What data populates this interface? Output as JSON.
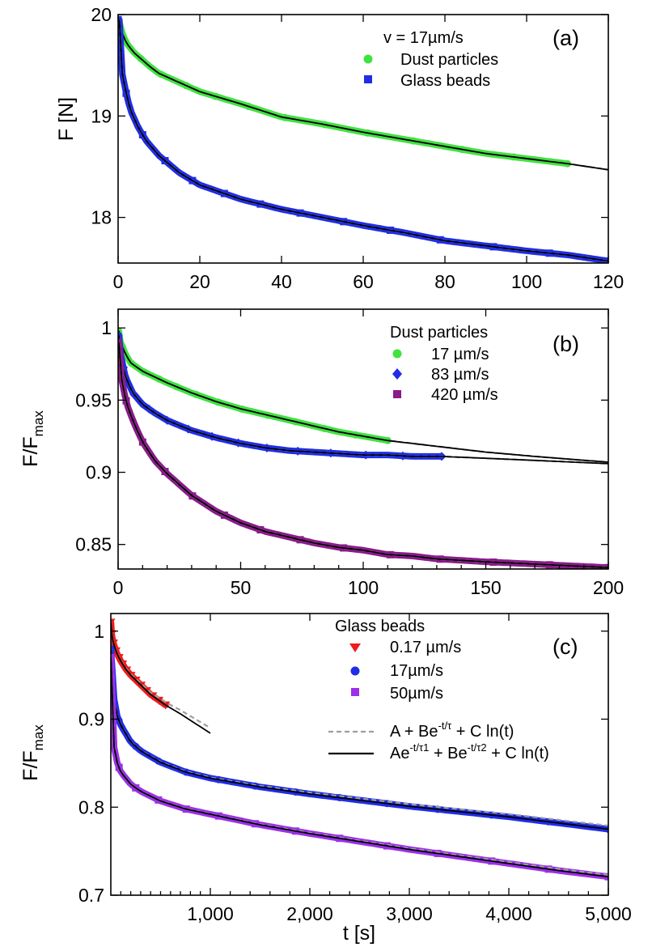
{
  "figure": {
    "x_axis_title": "t [s]"
  },
  "chart_data": [
    {
      "id": "a",
      "type": "line",
      "panel_label": "(a)",
      "ylabel": "F [N]",
      "xlabel": "",
      "xlim": [
        0,
        120
      ],
      "ylim": [
        17.55,
        20
      ],
      "x_ticks": [
        0,
        20,
        40,
        60,
        80,
        100,
        120
      ],
      "x_tick_labels": [
        "0",
        "20",
        "40",
        "60",
        "80",
        "100",
        "120"
      ],
      "x_minor_ticks": [],
      "y_ticks": [
        18,
        19,
        20
      ],
      "y_tick_labels": [
        "18",
        "19",
        "20"
      ],
      "legend": {
        "title": "v = 17µm/s",
        "placement": "top-right",
        "entries": [
          {
            "label": "Dust particles",
            "color": "#3fe33f",
            "marker": "circle"
          },
          {
            "label": "Glass beads",
            "color": "#1f2de6",
            "marker": "square"
          }
        ]
      },
      "series": [
        {
          "name": "Dust particles",
          "color": "#3fe33f",
          "marker": "circle",
          "x_max": 110,
          "fit_x_max": 120,
          "points": [
            [
              0.3,
              19.93
            ],
            [
              1,
              19.82
            ],
            [
              2,
              19.72
            ],
            [
              4,
              19.62
            ],
            [
              6,
              19.55
            ],
            [
              8,
              19.48
            ],
            [
              10,
              19.42
            ],
            [
              15,
              19.33
            ],
            [
              20,
              19.24
            ],
            [
              30,
              19.12
            ],
            [
              40,
              18.99
            ],
            [
              50,
              18.92
            ],
            [
              60,
              18.84
            ],
            [
              70,
              18.77
            ],
            [
              80,
              18.7
            ],
            [
              90,
              18.63
            ],
            [
              100,
              18.58
            ],
            [
              110,
              18.53
            ],
            [
              120,
              18.47
            ]
          ]
        },
        {
          "name": "Glass beads",
          "color": "#1f2de6",
          "marker": "square",
          "x_max": 120,
          "fit_x_max": 120,
          "points": [
            [
              0.3,
              19.95
            ],
            [
              0.7,
              19.65
            ],
            [
              1,
              19.42
            ],
            [
              2,
              19.22
            ],
            [
              3,
              19.06
            ],
            [
              5,
              18.88
            ],
            [
              7,
              18.75
            ],
            [
              10,
              18.61
            ],
            [
              15,
              18.44
            ],
            [
              20,
              18.32
            ],
            [
              30,
              18.18
            ],
            [
              40,
              18.08
            ],
            [
              50,
              18.0
            ],
            [
              60,
              17.92
            ],
            [
              70,
              17.85
            ],
            [
              80,
              17.77
            ],
            [
              90,
              17.72
            ],
            [
              100,
              17.67
            ],
            [
              110,
              17.63
            ],
            [
              120,
              17.57
            ]
          ]
        }
      ]
    },
    {
      "id": "b",
      "type": "line",
      "panel_label": "(b)",
      "ylabel": "F/F",
      "ylabel_subscript": "max",
      "xlabel": "",
      "xlim": [
        0,
        200
      ],
      "ylim": [
        0.833,
        1.013
      ],
      "x_ticks": [
        0,
        50,
        100,
        150,
        200
      ],
      "x_tick_labels": [
        "0",
        "50",
        "100",
        "150",
        "200"
      ],
      "x_minor_ticks": [
        10,
        20,
        30,
        40,
        60,
        70,
        80,
        90,
        110,
        120,
        130,
        140,
        160,
        170,
        180,
        190
      ],
      "y_ticks": [
        0.85,
        0.9,
        0.95,
        1.0
      ],
      "y_tick_labels": [
        "0.85",
        "0.9",
        "0.95",
        "1"
      ],
      "legend": {
        "title": "Dust particles",
        "placement": "top-right",
        "entries": [
          {
            "label": "17 µm/s",
            "color": "#3fe33f",
            "marker": "circle"
          },
          {
            "label": "83 µm/s",
            "color": "#1f2de6",
            "marker": "diamond"
          },
          {
            "label": "420 µm/s",
            "color": "#8b1a8b",
            "marker": "square"
          }
        ]
      },
      "series": [
        {
          "name": "17 µm/s",
          "color": "#3fe33f",
          "marker": "circle",
          "x_max": 110,
          "fit_x_max": 200,
          "points": [
            [
              0.3,
              0.998
            ],
            [
              1,
              0.99
            ],
            [
              3,
              0.982
            ],
            [
              5,
              0.976
            ],
            [
              10,
              0.97
            ],
            [
              20,
              0.962
            ],
            [
              30,
              0.955
            ],
            [
              40,
              0.949
            ],
            [
              50,
              0.944
            ],
            [
              60,
              0.94
            ],
            [
              70,
              0.936
            ],
            [
              80,
              0.932
            ],
            [
              90,
              0.928
            ],
            [
              100,
              0.925
            ],
            [
              110,
              0.922
            ],
            [
              130,
              0.918
            ],
            [
              150,
              0.914
            ],
            [
              170,
              0.911
            ],
            [
              200,
              0.907
            ]
          ]
        },
        {
          "name": "83 µm/s",
          "color": "#1f2de6",
          "marker": "diamond",
          "x_max": 132,
          "fit_x_max": 200,
          "points": [
            [
              0.3,
              0.995
            ],
            [
              1,
              0.982
            ],
            [
              3,
              0.966
            ],
            [
              6,
              0.955
            ],
            [
              10,
              0.947
            ],
            [
              15,
              0.941
            ],
            [
              20,
              0.936
            ],
            [
              30,
              0.929
            ],
            [
              40,
              0.924
            ],
            [
              50,
              0.92
            ],
            [
              60,
              0.917
            ],
            [
              70,
              0.915
            ],
            [
              80,
              0.914
            ],
            [
              90,
              0.913
            ],
            [
              100,
              0.912
            ],
            [
              110,
              0.912
            ],
            [
              120,
              0.911
            ],
            [
              132,
              0.911
            ],
            [
              160,
              0.909
            ],
            [
              200,
              0.906
            ]
          ]
        },
        {
          "name": "420 µm/s",
          "color": "#8b1a8b",
          "marker": "square",
          "x_max": 200,
          "fit_x_max": 200,
          "points": [
            [
              0.3,
              0.99
            ],
            [
              1,
              0.97
            ],
            [
              2,
              0.958
            ],
            [
              4,
              0.945
            ],
            [
              7,
              0.932
            ],
            [
              10,
              0.921
            ],
            [
              15,
              0.908
            ],
            [
              20,
              0.899
            ],
            [
              30,
              0.884
            ],
            [
              40,
              0.873
            ],
            [
              50,
              0.865
            ],
            [
              60,
              0.859
            ],
            [
              70,
              0.855
            ],
            [
              80,
              0.851
            ],
            [
              90,
              0.848
            ],
            [
              100,
              0.846
            ],
            [
              110,
              0.843
            ],
            [
              120,
              0.842
            ],
            [
              130,
              0.84
            ],
            [
              150,
              0.838
            ],
            [
              175,
              0.836
            ],
            [
              200,
              0.834
            ]
          ]
        }
      ]
    },
    {
      "id": "c",
      "type": "line",
      "panel_label": "(c)",
      "ylabel": "F/F",
      "ylabel_subscript": "max",
      "xlabel": "t [s]",
      "xlim": [
        0,
        5000
      ],
      "ylim": [
        0.7,
        1.02
      ],
      "x_ticks": [
        1000,
        2000,
        3000,
        4000,
        5000
      ],
      "x_tick_labels": [
        "1,000",
        "2,000",
        "3,000",
        "4,000",
        "5,000"
      ],
      "x_minor_ticks": [
        100,
        200,
        300,
        400,
        500,
        600,
        700,
        800,
        900,
        1200,
        1400,
        1600,
        1800,
        2200,
        2400,
        2600,
        2800,
        3200,
        3400,
        3600,
        3800,
        4200,
        4400,
        4600,
        4800
      ],
      "y_ticks": [
        0.7,
        0.8,
        0.9,
        1.0
      ],
      "y_tick_labels": [
        "0.7",
        "0.8",
        "0.9",
        "1"
      ],
      "legend": {
        "title": "Glass beads",
        "placement": "top-right",
        "entries": [
          {
            "label": "0.17 µm/s",
            "color": "#ee1c1c",
            "marker": "triangle-down"
          },
          {
            "label": "17µm/s",
            "color": "#1f2de6",
            "marker": "circle"
          },
          {
            "label": "50µm/s",
            "color": "#9b30e8",
            "marker": "square"
          }
        ]
      },
      "fit_legend": {
        "placement": "right",
        "entries": [
          {
            "style": "dashed",
            "color": "#9e9e9e",
            "label": "A + Be",
            "exponent": "-t/τ",
            "tail": " + C ln(t)"
          },
          {
            "style": "solid",
            "color": "#000000",
            "label": "Ae",
            "exponent": "-t/τ1",
            "middle": " + Be",
            "exponent2": "-t/τ2",
            "tail": " + C ln(t)"
          }
        ]
      },
      "series": [
        {
          "name": "0.17 µm/s",
          "color": "#ee1c1c",
          "marker": "triangle-down",
          "x_max": 550,
          "fit_x_max": 1000,
          "dash_y_offset": 0.006,
          "points": [
            [
              2,
              1.01
            ],
            [
              10,
              0.995
            ],
            [
              30,
              0.985
            ],
            [
              60,
              0.975
            ],
            [
              100,
              0.966
            ],
            [
              150,
              0.957
            ],
            [
              200,
              0.95
            ],
            [
              300,
              0.939
            ],
            [
              400,
              0.928
            ],
            [
              500,
              0.92
            ],
            [
              550,
              0.916
            ],
            [
              700,
              0.906
            ],
            [
              850,
              0.895
            ],
            [
              1000,
              0.884
            ]
          ]
        },
        {
          "name": "17µm/s",
          "color": "#1f2de6",
          "marker": "circle",
          "x_max": 5000,
          "fit_x_max": 5000,
          "dash_y_offset": 0.004,
          "points": [
            [
              2,
              0.98
            ],
            [
              10,
              0.95
            ],
            [
              30,
              0.925
            ],
            [
              60,
              0.905
            ],
            [
              100,
              0.893
            ],
            [
              200,
              0.874
            ],
            [
              300,
              0.864
            ],
            [
              500,
              0.851
            ],
            [
              750,
              0.84
            ],
            [
              1000,
              0.833
            ],
            [
              1500,
              0.823
            ],
            [
              2000,
              0.815
            ],
            [
              2500,
              0.808
            ],
            [
              3000,
              0.801
            ],
            [
              3500,
              0.795
            ],
            [
              4000,
              0.789
            ],
            [
              4500,
              0.782
            ],
            [
              5000,
              0.775
            ]
          ]
        },
        {
          "name": "50µm/s",
          "color": "#9b30e8",
          "marker": "square",
          "x_max": 5000,
          "fit_x_max": 5000,
          "dash_y_offset": 0.002,
          "points": [
            [
              2,
              0.97
            ],
            [
              10,
              0.9
            ],
            [
              30,
              0.87
            ],
            [
              60,
              0.852
            ],
            [
              100,
              0.84
            ],
            [
              200,
              0.826
            ],
            [
              300,
              0.818
            ],
            [
              500,
              0.807
            ],
            [
              750,
              0.798
            ],
            [
              1000,
              0.792
            ],
            [
              1500,
              0.78
            ],
            [
              2000,
              0.77
            ],
            [
              2500,
              0.761
            ],
            [
              3000,
              0.752
            ],
            [
              3500,
              0.744
            ],
            [
              4000,
              0.736
            ],
            [
              4500,
              0.728
            ],
            [
              5000,
              0.721
            ]
          ]
        }
      ]
    }
  ]
}
